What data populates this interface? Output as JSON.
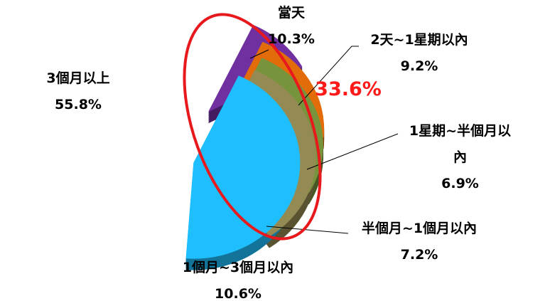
{
  "chart_data": {
    "type": "pie",
    "categories": [
      "當天",
      "2天~1星期以內",
      "1星期~半個月以內",
      "半個月~1個月以內",
      "1個月~3個月以內",
      "3個月以上"
    ],
    "values": [
      10.3,
      9.2,
      6.9,
      7.2,
      10.6,
      55.8
    ],
    "value_labels": [
      "10.3%",
      "9.2%",
      "6.9%",
      "7.2%",
      "10.6%",
      "55.8%"
    ],
    "colors": [
      "#7030a0",
      "#e36c0a",
      "#77933c",
      "#948a54",
      "#1fbfff",
      "#ff9999"
    ],
    "annotation": "33.6%",
    "annotation_color": "#ff1a1a"
  }
}
